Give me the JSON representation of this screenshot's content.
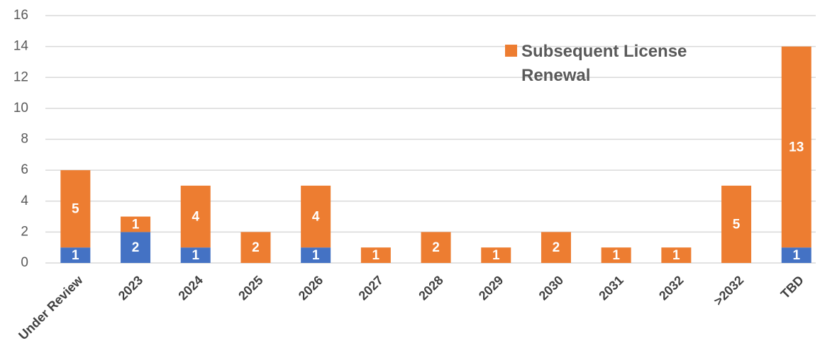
{
  "chart_data": {
    "type": "stacked_bar",
    "categories": [
      "Under Review",
      "2023",
      "2024",
      "2025",
      "2026",
      "2027",
      "2028",
      "2029",
      "2030",
      "2031",
      "2032",
      ">2032",
      "TBD"
    ],
    "series": [
      {
        "color": "#4472c4",
        "values": [
          1,
          2,
          1,
          0,
          1,
          0,
          0,
          0,
          0,
          0,
          0,
          0,
          1
        ]
      },
      {
        "name": "Subsequent License Renewal",
        "color": "#ed7d31",
        "values": [
          5,
          1,
          4,
          2,
          4,
          1,
          2,
          1,
          2,
          1,
          1,
          5,
          13
        ]
      }
    ],
    "ylim": [
      0,
      16
    ],
    "yticks": [
      0,
      2,
      4,
      6,
      8,
      10,
      12,
      14,
      16
    ],
    "grid": true,
    "legend": "top-right"
  }
}
